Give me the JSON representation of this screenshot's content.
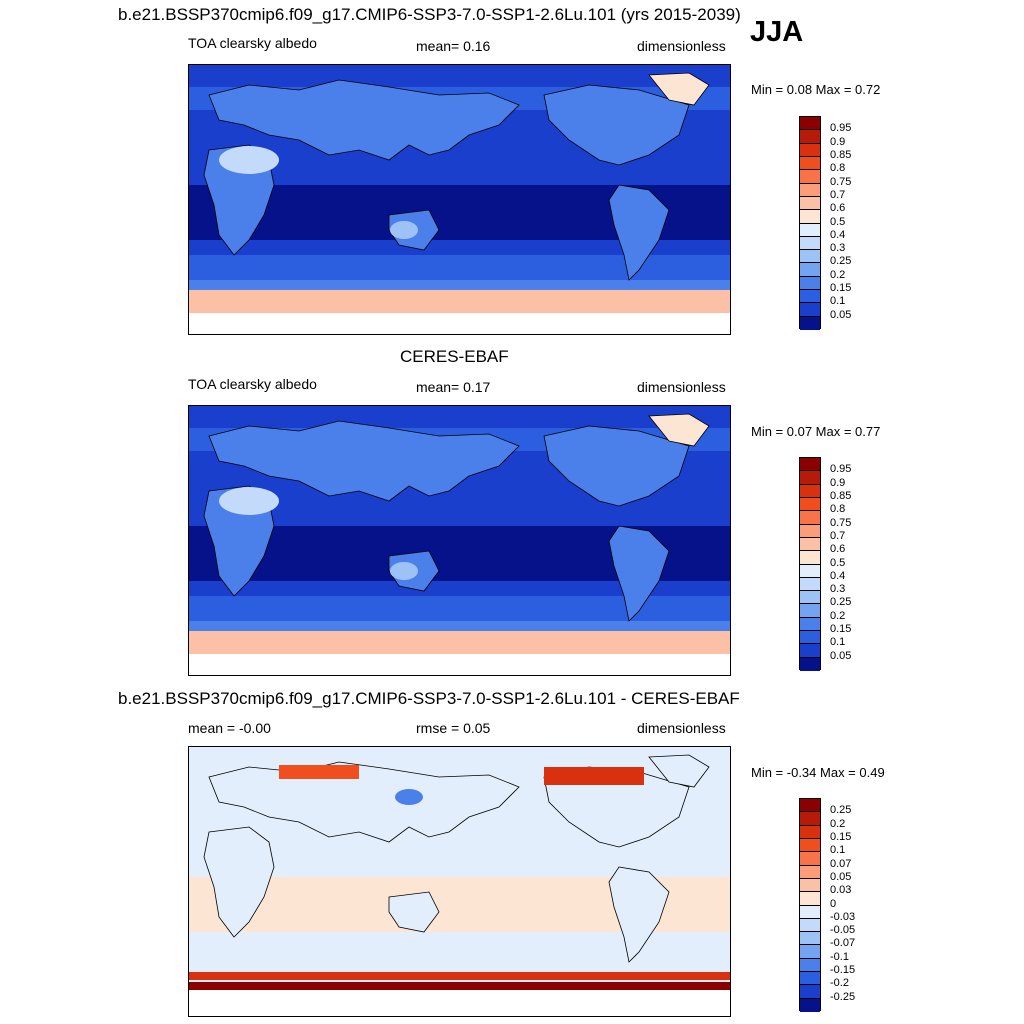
{
  "season": "JJA",
  "panels": [
    {
      "heading": "b.e21.BSSP370cmip6.f09_g17.CMIP6-SSP3-7.0-SSP1-2.6Lu.101 (yrs 2015-2039)",
      "left_label": "TOA clearsky albedo",
      "mid_label": "mean=   0.16",
      "units": "dimensionless",
      "minmax": "Min =   0.08 Max =   0.72",
      "colorbar": {
        "labels": [
          "0.95",
          "0.9",
          "0.85",
          "0.8",
          "0.75",
          "0.7",
          "0.6",
          "0.5",
          "0.4",
          "0.3",
          "0.25",
          "0.2",
          "0.15",
          "0.1",
          "0.05"
        ],
        "colors": [
          "#8b0000",
          "#b81a0a",
          "#d9310f",
          "#f04e1f",
          "#f8734a",
          "#fb9c7a",
          "#fbc0a6",
          "#fde5d4",
          "#e2eefb",
          "#c3dafa",
          "#9dc2f6",
          "#74a3ef",
          "#4b80ea",
          "#2b5fe0",
          "#1a3fcc",
          "#06128a"
        ]
      }
    },
    {
      "heading": "CERES-EBAF",
      "left_label": "TOA clearsky albedo",
      "mid_label": "mean=   0.17",
      "units": "dimensionless",
      "minmax": "Min =   0.07 Max =   0.77",
      "colorbar": {
        "labels": [
          "0.95",
          "0.9",
          "0.85",
          "0.8",
          "0.75",
          "0.7",
          "0.6",
          "0.5",
          "0.4",
          "0.3",
          "0.25",
          "0.2",
          "0.15",
          "0.1",
          "0.05"
        ],
        "colors": [
          "#8b0000",
          "#b81a0a",
          "#d9310f",
          "#f04e1f",
          "#f8734a",
          "#fb9c7a",
          "#fbc0a6",
          "#fde5d4",
          "#e2eefb",
          "#c3dafa",
          "#9dc2f6",
          "#74a3ef",
          "#4b80ea",
          "#2b5fe0",
          "#1a3fcc",
          "#06128a"
        ]
      }
    },
    {
      "heading": "b.e21.BSSP370cmip6.f09_g17.CMIP6-SSP3-7.0-SSP1-2.6Lu.101 - CERES-EBAF",
      "left_label": "mean =  -0.00",
      "mid_label": "rmse =   0.05",
      "units": "dimensionless",
      "minmax": "Min =  -0.34 Max =   0.49",
      "colorbar": {
        "labels": [
          "0.25",
          "0.2",
          "0.15",
          "0.1",
          "0.07",
          "0.05",
          "0.03",
          "0",
          "-0.03",
          "-0.05",
          "-0.07",
          "-0.1",
          "-0.15",
          "-0.2",
          "-0.25"
        ],
        "colors": [
          "#8b0000",
          "#b81a0a",
          "#d9310f",
          "#f04e1f",
          "#f8734a",
          "#fb9c7a",
          "#fbc0a6",
          "#fde5d4",
          "#e2eefb",
          "#c3dafa",
          "#9dc2f6",
          "#74a3ef",
          "#4b80ea",
          "#2b5fe0",
          "#1a3fcc",
          "#06128a"
        ]
      }
    }
  ]
}
